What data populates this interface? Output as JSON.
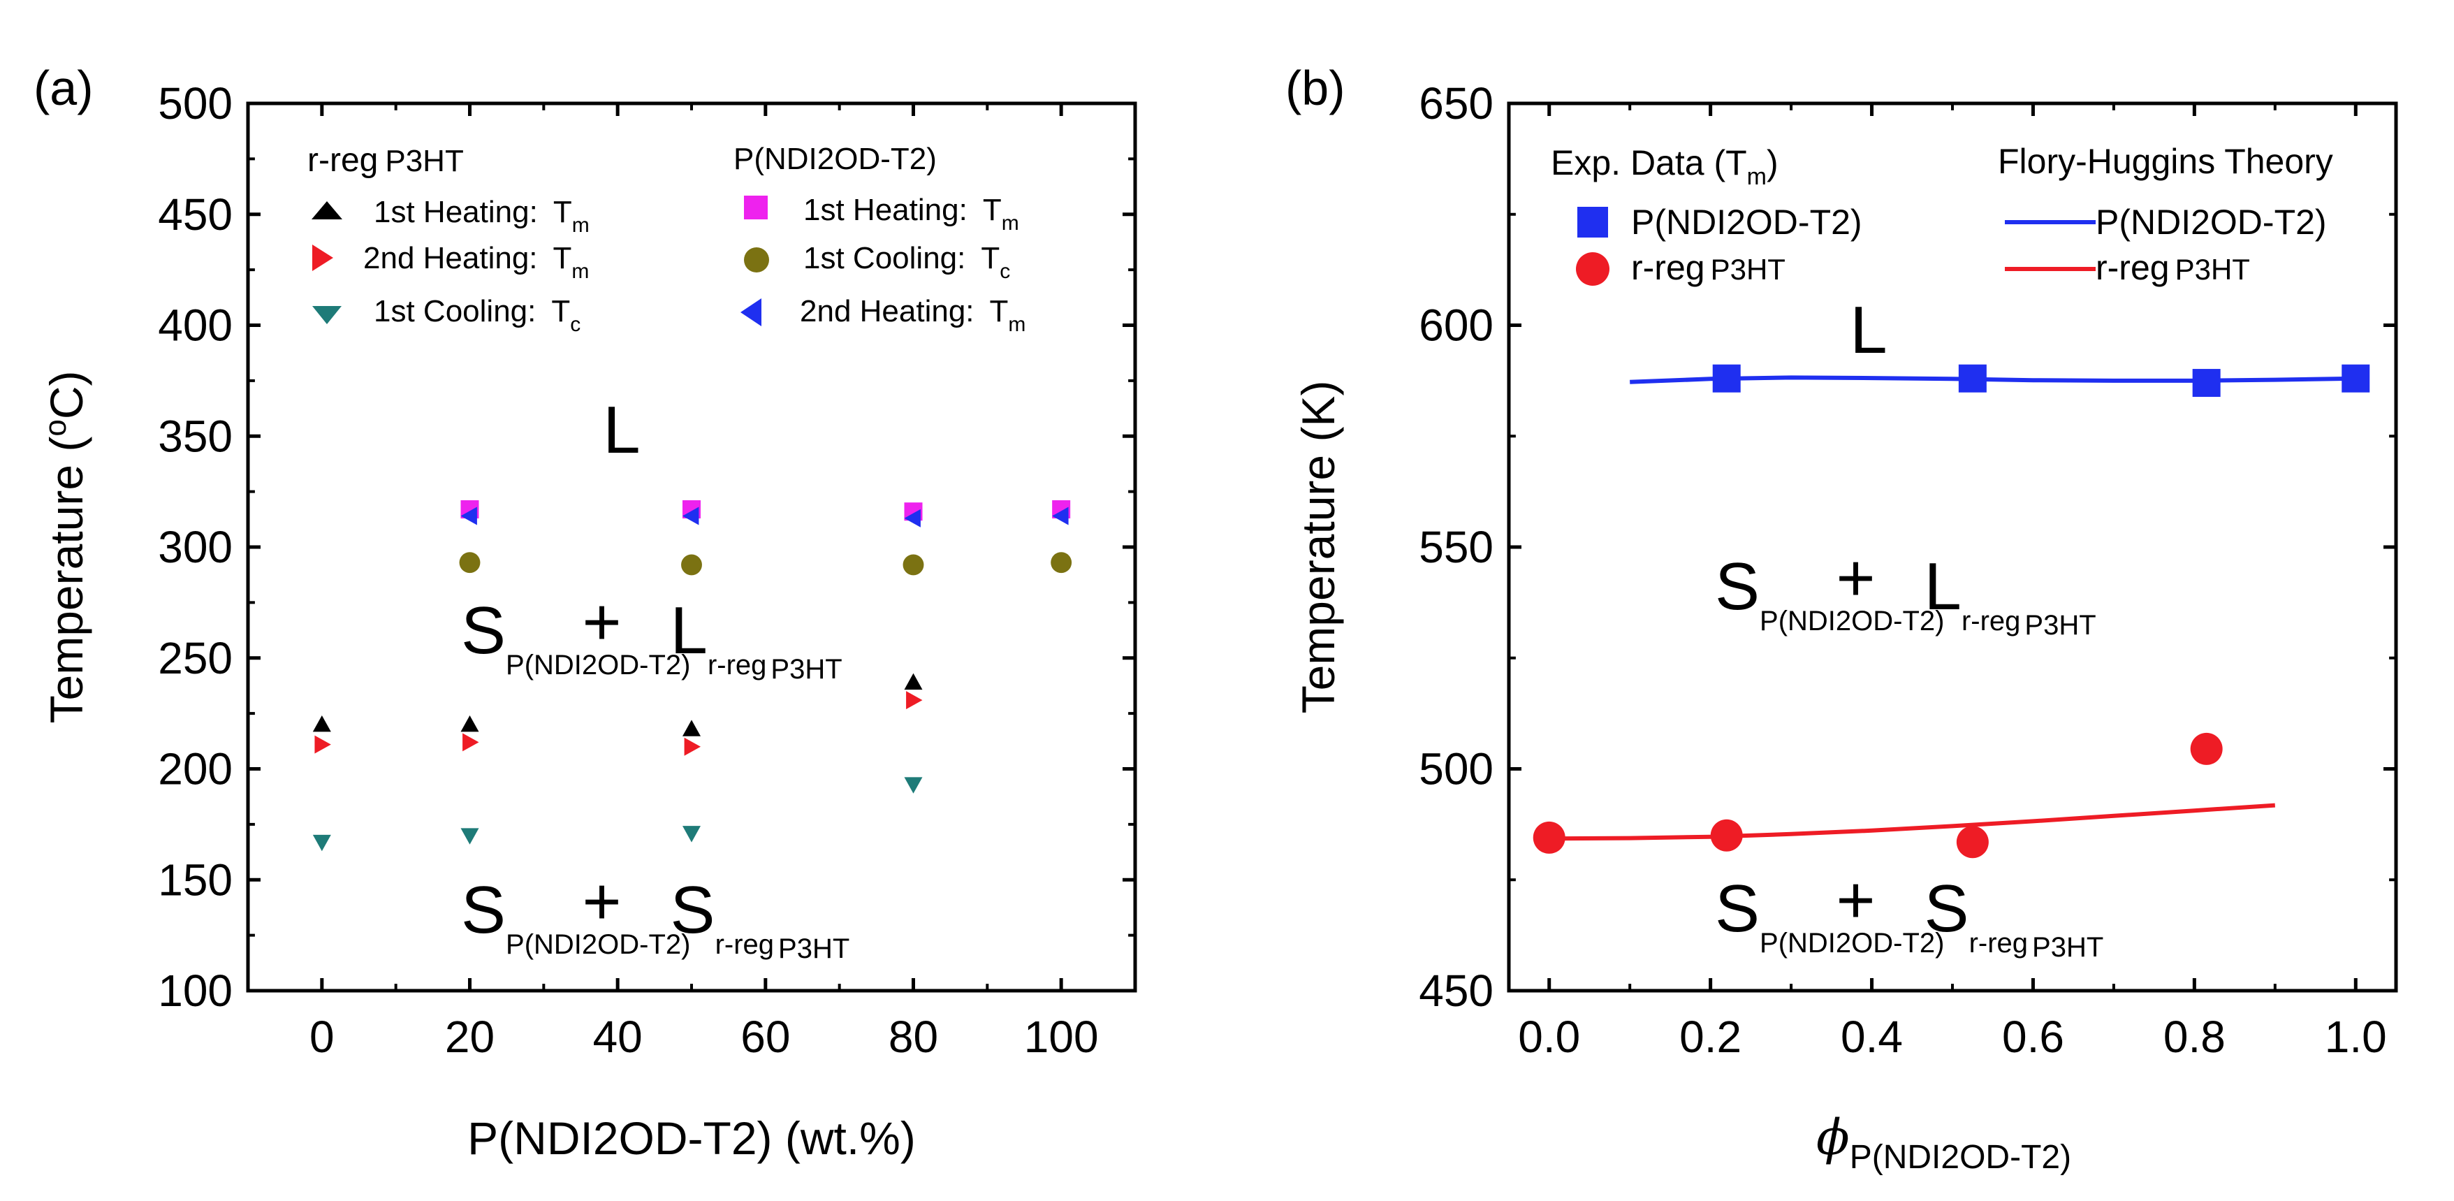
{
  "chart_data": [
    {
      "panel_label": "(a)",
      "type": "scatter",
      "xlabel": "P(NDI2OD-T2) (wt.%)",
      "ylabel": "Temperature (",
      "ylabel_sup": "o",
      "ylabel_tail": "C)",
      "xlim": [
        -10,
        110
      ],
      "ylim": [
        100,
        500
      ],
      "xticks": [
        0,
        20,
        40,
        60,
        80,
        100
      ],
      "xtick_labels": [
        "0",
        "20",
        "40",
        "60",
        "80",
        "100"
      ],
      "yticks": [
        100,
        150,
        200,
        250,
        300,
        350,
        400,
        450,
        500
      ],
      "ytick_labels": [
        "100",
        "150",
        "200",
        "250",
        "300",
        "350",
        "400",
        "450",
        "500"
      ],
      "legend_groups": [
        {
          "title": "r-reg",
          "title_tail": "P3HT"
        },
        {
          "title": "P(NDI2OD-T2)",
          "title_tail": ""
        }
      ],
      "series": [
        {
          "name": "1st Heating:",
          "sym": "T",
          "sub": "m",
          "group": "r-reg P3HT",
          "marker": "triangle-up",
          "color": "#000000",
          "points": [
            {
              "x": 0,
              "y": 220
            },
            {
              "x": 20,
              "y": 220
            },
            {
              "x": 50,
              "y": 218
            },
            {
              "x": 80,
              "y": 239
            }
          ]
        },
        {
          "name": "2nd Heating:",
          "sym": "T",
          "sub": "m",
          "group": "r-reg P3HT",
          "marker": "triangle-right",
          "color": "#ee1c25",
          "points": [
            {
              "x": 0,
              "y": 211
            },
            {
              "x": 20,
              "y": 212
            },
            {
              "x": 50,
              "y": 210
            },
            {
              "x": 80,
              "y": 231
            }
          ]
        },
        {
          "name": "1st Cooling:",
          "sym": "T",
          "sub": "c",
          "group": "r-reg P3HT",
          "marker": "triangle-down",
          "color": "#1e7b78",
          "points": [
            {
              "x": 0,
              "y": 167
            },
            {
              "x": 20,
              "y": 170
            },
            {
              "x": 50,
              "y": 171
            },
            {
              "x": 80,
              "y": 193
            }
          ]
        },
        {
          "name": "1st Heating:",
          "sym": "T",
          "sub": "m",
          "group": "P(NDI2OD-T2)",
          "marker": "square",
          "color": "#ee22ee",
          "points": [
            {
              "x": 20,
              "y": 317
            },
            {
              "x": 50,
              "y": 317
            },
            {
              "x": 80,
              "y": 316
            },
            {
              "x": 100,
              "y": 317
            }
          ]
        },
        {
          "name": "1st Cooling:",
          "sym": "T",
          "sub": "c",
          "group": "P(NDI2OD-T2)",
          "marker": "circle",
          "color": "#7b7212",
          "points": [
            {
              "x": 20,
              "y": 293
            },
            {
              "x": 50,
              "y": 292
            },
            {
              "x": 80,
              "y": 292
            },
            {
              "x": 100,
              "y": 293
            }
          ]
        },
        {
          "name": "2nd Heating:",
          "sym": "T",
          "sub": "m",
          "group": "P(NDI2OD-T2)",
          "marker": "triangle-left",
          "color": "#1f2ff0",
          "points": [
            {
              "x": 20,
              "y": 314
            },
            {
              "x": 50,
              "y": 314
            },
            {
              "x": 80,
              "y": 313
            },
            {
              "x": 100,
              "y": 314
            }
          ]
        }
      ],
      "annotations": [
        {
          "main": "L",
          "x": 40,
          "y": 340
        },
        {
          "main": "S",
          "sub": "P(NDI2OD-T2)",
          "plus": "+",
          "main2": "L",
          "sub2": "r-reg",
          "sub2b": "P3HT",
          "x": 40,
          "y": 245
        },
        {
          "main": "S",
          "sub": "P(NDI2OD-T2)",
          "plus": "+",
          "main2": "S",
          "sub2": "r-reg",
          "sub2b": "P3HT",
          "x": 40,
          "y": 140
        }
      ]
    },
    {
      "panel_label": "(b)",
      "type": "scatter",
      "xlabel": "ϕ",
      "xlabel_sub": "P(NDI2OD-T2)",
      "ylabel": "Temperature (K)",
      "xlim": [
        -0.05,
        1.05
      ],
      "ylim": [
        450,
        650
      ],
      "xticks": [
        0.0,
        0.2,
        0.4,
        0.6,
        0.8,
        1.0
      ],
      "xtick_labels": [
        "0.0",
        "0.2",
        "0.4",
        "0.6",
        "0.8",
        "1.0"
      ],
      "yticks": [
        450,
        500,
        550,
        600,
        650
      ],
      "ytick_labels": [
        "450",
        "500",
        "550",
        "600",
        "650"
      ],
      "legend_left_title": "Exp. Data (",
      "legend_left_sym": "T",
      "legend_left_sub": "m",
      "legend_left_tail": ")",
      "legend_right_title": "Flory-Huggins Theory",
      "series": [
        {
          "name": "P(NDI2OD-T2)",
          "name_b": "",
          "marker": "square",
          "color": "#1f2ff0",
          "points": [
            {
              "x": 0.22,
              "y": 588
            },
            {
              "x": 0.525,
              "y": 588
            },
            {
              "x": 0.815,
              "y": 587
            },
            {
              "x": 1.0,
              "y": 588
            }
          ]
        },
        {
          "name": "r-reg",
          "name_b": "P3HT",
          "marker": "circle",
          "color": "#ee1c25",
          "points": [
            {
              "x": 0.0,
              "y": 484.5
            },
            {
              "x": 0.22,
              "y": 485
            },
            {
              "x": 0.525,
              "y": 483.5
            },
            {
              "x": 0.815,
              "y": 504.5
            }
          ]
        }
      ],
      "lines": [
        {
          "name": "P(NDI2OD-T2)",
          "name_b": "",
          "color": "#1f2ff0",
          "points": [
            {
              "x": 0.1,
              "y": 587.2
            },
            {
              "x": 0.2,
              "y": 587.9
            },
            {
              "x": 0.3,
              "y": 588.2
            },
            {
              "x": 0.4,
              "y": 588.1
            },
            {
              "x": 0.5,
              "y": 587.9
            },
            {
              "x": 0.6,
              "y": 587.6
            },
            {
              "x": 0.7,
              "y": 587.5
            },
            {
              "x": 0.8,
              "y": 587.5
            },
            {
              "x": 0.9,
              "y": 587.7
            },
            {
              "x": 1.0,
              "y": 588.0
            }
          ]
        },
        {
          "name": "r-reg",
          "name_b": "P3HT",
          "color": "#ee1c25",
          "points": [
            {
              "x": 0.0,
              "y": 484.3
            },
            {
              "x": 0.1,
              "y": 484.4
            },
            {
              "x": 0.2,
              "y": 484.7
            },
            {
              "x": 0.3,
              "y": 485.3
            },
            {
              "x": 0.4,
              "y": 486.1
            },
            {
              "x": 0.5,
              "y": 487.1
            },
            {
              "x": 0.6,
              "y": 488.2
            },
            {
              "x": 0.7,
              "y": 489.4
            },
            {
              "x": 0.8,
              "y": 490.6
            },
            {
              "x": 0.9,
              "y": 491.8
            }
          ]
        }
      ],
      "annotations": [
        {
          "main": "L",
          "x": 0.4,
          "y": 596
        },
        {
          "main": "S",
          "sub": "P(NDI2OD-T2)",
          "plus": "+",
          "main2": "L",
          "sub2": "r-reg",
          "sub2b": "P3HT",
          "x": 0.4,
          "y": 533
        },
        {
          "main": "S",
          "sub": "P(NDI2OD-T2)",
          "plus": "+",
          "main2": "S",
          "sub2": "r-reg",
          "sub2b": "P3HT",
          "x": 0.4,
          "y": 461
        }
      ]
    }
  ]
}
